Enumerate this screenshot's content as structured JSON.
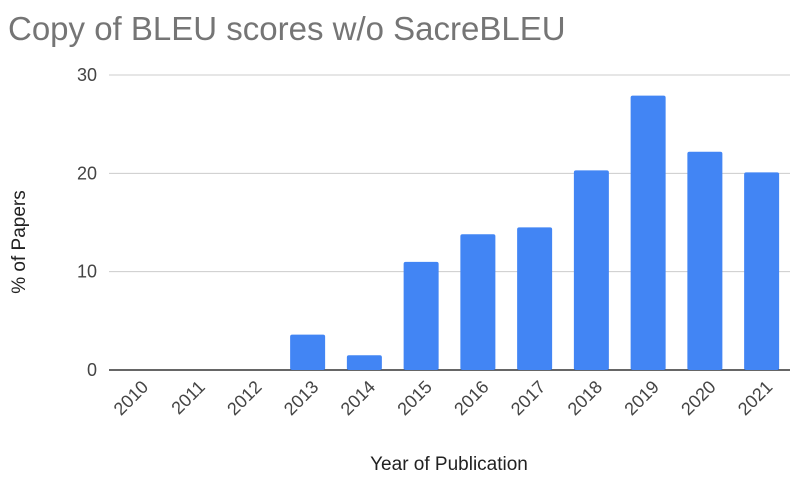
{
  "chart_data": {
    "type": "bar",
    "title": "Copy of BLEU scores w/o SacreBLEU",
    "xlabel": "Year of Publication",
    "ylabel": "% of Papers",
    "categories": [
      "2010",
      "2011",
      "2012",
      "2013",
      "2014",
      "2015",
      "2016",
      "2017",
      "2018",
      "2019",
      "2020",
      "2021"
    ],
    "values": [
      0,
      0,
      0,
      3.6,
      1.5,
      11.0,
      13.8,
      14.5,
      20.3,
      27.9,
      22.2,
      20.1
    ],
    "ylim": [
      0,
      30
    ],
    "yticks": [
      "0",
      "10",
      "20",
      "30"
    ],
    "grid": true,
    "bar_color": "#4285f4"
  }
}
